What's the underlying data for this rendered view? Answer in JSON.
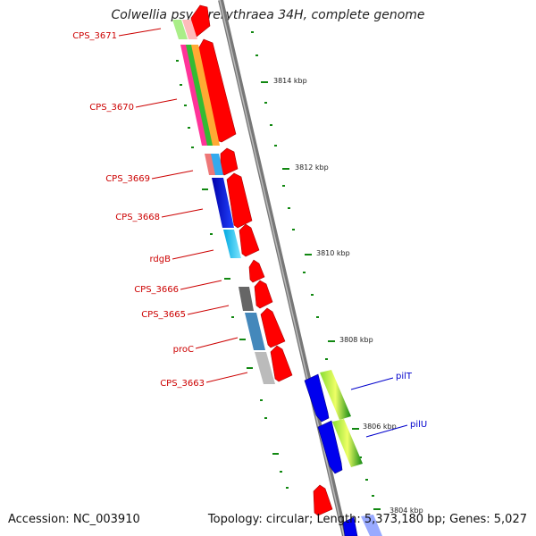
{
  "title": "Colwellia psychrerythraea 34H, complete genome",
  "footer": {
    "accession": "Accession: NC_003910",
    "summary": "Topology: circular; Length: 5,373,180 bp; Genes: 5,027"
  },
  "colors": {
    "label_left": "#cc0000",
    "label_right": "#0000cc",
    "tick": "#118811",
    "backbone": "#888888"
  },
  "kbp_ticks": [
    "3814 kbp",
    "3812 kbp",
    "3810 kbp",
    "3808 kbp",
    "3806 kbp",
    "3804 kbp"
  ],
  "left_labels": [
    "CPS_3671",
    "CPS_3670",
    "CPS_3669",
    "CPS_3668",
    "rdgB",
    "CPS_3666",
    "CPS_3665",
    "proC",
    "CPS_3663"
  ],
  "right_labels": [
    "pilT",
    "pilU"
  ]
}
